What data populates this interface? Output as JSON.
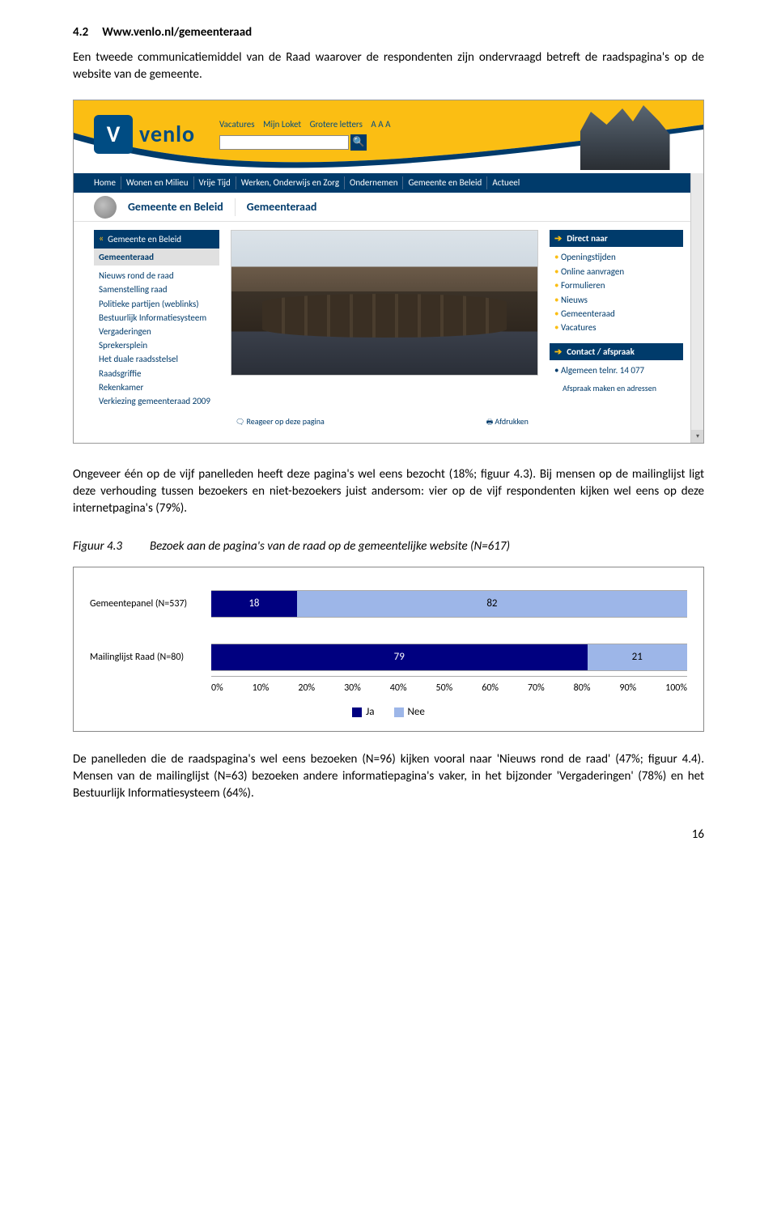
{
  "heading": {
    "number": "4.2",
    "title": "Www.venlo.nl/gemeenteraad"
  },
  "intro_para": "Een tweede communicatiemiddel van de Raad waarover de respondenten zijn ondervraagd betreft de raadspagina's op de website van de gemeente.",
  "screenshot": {
    "logo_text": "venlo",
    "toplinks": {
      "a": "Vacatures",
      "b": "Mijn Loket",
      "c": "Grotere letters",
      "sizes": "A A A"
    },
    "main_nav": [
      "Home",
      "Wonen en Milieu",
      "Vrije Tijd",
      "Werken, Onderwijs en Zorg",
      "Ondernemen",
      "Gemeente en Beleid",
      "Actueel"
    ],
    "crumb": {
      "a": "Gemeente en Beleid",
      "b": "Gemeenteraad"
    },
    "left": {
      "section": "Gemeente en Beleid",
      "current": "Gemeenteraad",
      "links": [
        "Nieuws rond de raad",
        "Samenstelling raad",
        "Politieke partijen (weblinks)",
        "Bestuurlijk Informatiesysteem",
        "Vergaderingen",
        "Sprekersplein",
        "Het duale raadsstelsel",
        "Raadsgriffie",
        "Rekenkamer",
        "Verkiezing gemeenteraad 2009"
      ]
    },
    "right": {
      "box1_title": "Direct naar",
      "box1_items": [
        "Openingstijden",
        "Online aanvragen",
        "Formulieren",
        "Nieuws",
        "Gemeenteraad",
        "Vacatures"
      ],
      "box2_title": "Contact / afspraak",
      "box2_a": "Algemeen telnr. 14 077",
      "box2_b": "Afspraak maken en adressen"
    },
    "footer": {
      "react": "Reageer op deze pagina",
      "print": "Afdrukken"
    }
  },
  "mid_para": "Ongeveer één op de vijf panelleden heeft deze pagina's wel eens bezocht (18%; figuur 4.3). Bij mensen op de mailinglijst ligt deze verhouding tussen bezoekers en niet-bezoekers juist andersom: vier op de vijf respondenten kijken wel eens op deze internetpagina's (79%).",
  "figure": {
    "num": "Figuur 4.3",
    "caption": "Bezoek aan de pagina's van de raad op de gemeentelijke website (N=617)"
  },
  "chart": {
    "colors": {
      "ja": "#000080",
      "nee": "#9db6e8",
      "border": "#888888"
    },
    "rows": [
      {
        "label": "Gemeentepanel (N=537)",
        "ja": 18,
        "nee": 82
      },
      {
        "label": "Mailinglijst Raad (N=80)",
        "ja": 79,
        "nee": 21
      }
    ],
    "axis": [
      "0%",
      "10%",
      "20%",
      "30%",
      "40%",
      "50%",
      "60%",
      "70%",
      "80%",
      "90%",
      "100%"
    ],
    "legend": {
      "ja": "Ja",
      "nee": "Nee"
    }
  },
  "end_para": "De panelleden die de raadspagina's wel eens bezoeken (N=96) kijken vooral naar 'Nieuws rond de raad' (47%; figuur 4.4). Mensen van de mailinglijst (N=63) bezoeken andere informatiepagina's vaker, in het bijzonder 'Vergaderingen' (78%) en het Bestuurlijk Informatiesysteem (64%).",
  "page_number": "16"
}
